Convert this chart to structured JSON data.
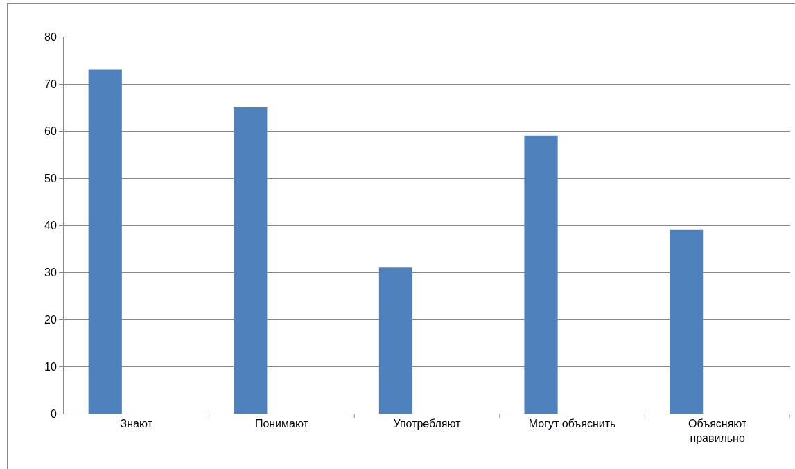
{
  "chart_data": {
    "type": "bar",
    "categories": [
      "Знают",
      "Понимают",
      "Употребляют",
      "Могут объяснить",
      "Объясняют правильно"
    ],
    "values": [
      73,
      65,
      31,
      59,
      39
    ],
    "color": "#4f81bd",
    "ylim": [
      0,
      80
    ],
    "yticks": [
      0,
      10,
      20,
      30,
      40,
      50,
      60,
      70,
      80
    ],
    "grid": "y"
  }
}
